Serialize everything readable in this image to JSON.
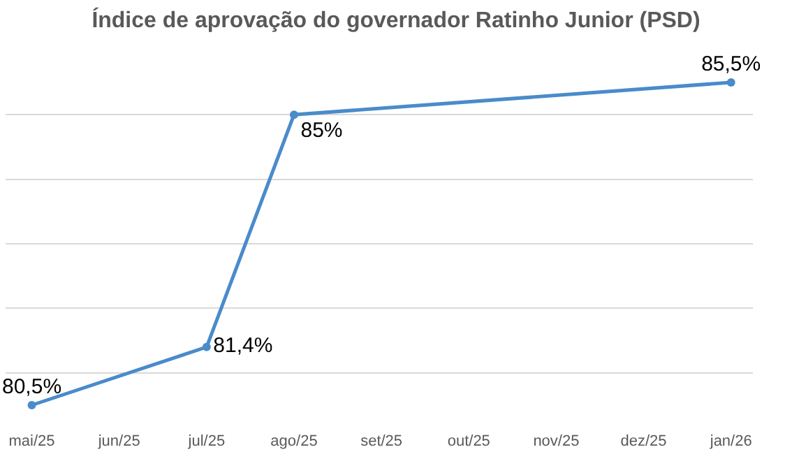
{
  "chart_data": {
    "type": "line",
    "title": "Índice de aprovação do governador Ratinho Junior (PSD)",
    "categories": [
      "mai/25",
      "jun/25",
      "jul/25",
      "ago/25",
      "set/25",
      "out/25",
      "nov/25",
      "dez/25",
      "jan/26"
    ],
    "series": [
      {
        "color": "#4a8bcb",
        "values": [
          80.5,
          null,
          81.4,
          85,
          null,
          null,
          null,
          null,
          85.5
        ],
        "value_labels": [
          "80,5%",
          null,
          "81,4%",
          "85%",
          null,
          null,
          null,
          null,
          "85,5%"
        ]
      }
    ],
    "tick_labels": "x",
    "grid": "y",
    "marker": "circle",
    "line_style": "solid",
    "legend": false
  }
}
